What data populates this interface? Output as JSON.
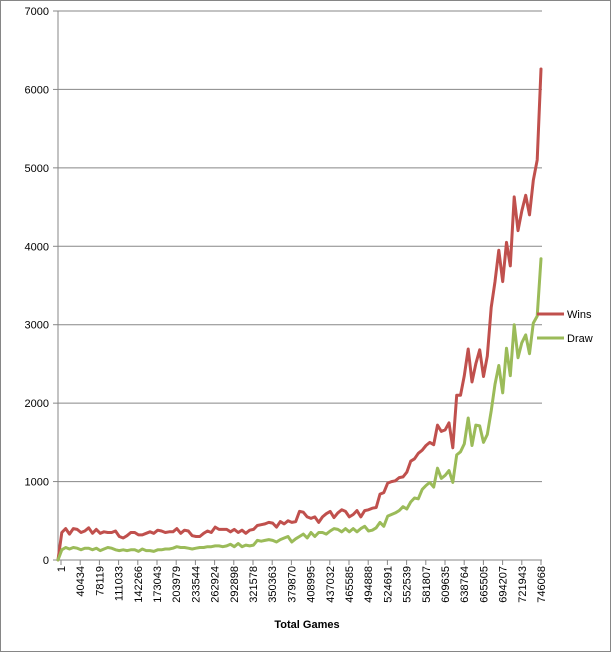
{
  "chart_data": {
    "type": "line",
    "title": "",
    "xlabel": "Total Games",
    "ylabel": "",
    "ylim": [
      0,
      7000
    ],
    "yticks": [
      "0",
      "1000",
      "2000",
      "3000",
      "4000",
      "5000",
      "6000",
      "7000"
    ],
    "grid": "horizontal",
    "legend_position": "right",
    "x_tick_labels": [
      "1",
      "40434",
      "78119",
      "111033",
      "142266",
      "173043",
      "203979",
      "233544",
      "262924",
      "292898",
      "321578",
      "350363",
      "379870",
      "408995",
      "437032",
      "465585",
      "494888",
      "524691",
      "552539",
      "581807",
      "609635",
      "638764",
      "665505",
      "694207",
      "721943",
      "746068"
    ],
    "colors": {
      "Wins": "#c0504d",
      "Draw": "#9bbb59",
      "grid": "#878787",
      "axis": "#878787"
    },
    "series": [
      {
        "name": "Wins",
        "values": [
          0,
          350,
          400,
          330,
          400,
          390,
          350,
          370,
          410,
          340,
          390,
          340,
          360,
          350,
          350,
          370,
          300,
          280,
          310,
          350,
          350,
          320,
          320,
          340,
          360,
          340,
          380,
          370,
          350,
          360,
          360,
          400,
          340,
          380,
          370,
          310,
          300,
          300,
          340,
          370,
          350,
          420,
          390,
          390,
          390,
          360,
          390,
          350,
          380,
          340,
          380,
          390,
          440,
          450,
          460,
          480,
          470,
          420,
          490,
          460,
          500,
          480,
          490,
          620,
          610,
          550,
          530,
          550,
          480,
          550,
          590,
          620,
          540,
          600,
          640,
          620,
          550,
          580,
          630,
          550,
          630,
          640,
          660,
          670,
          840,
          860,
          980,
          1000,
          1010,
          1050,
          1060,
          1120,
          1260,
          1290,
          1360,
          1400,
          1460,
          1500,
          1470,
          1720,
          1640,
          1660,
          1750,
          1430,
          2100,
          2100,
          2350,
          2690,
          2270,
          2500,
          2680,
          2340,
          2600,
          3220,
          3550,
          3950,
          3550,
          4050,
          3750,
          4630,
          4200,
          4450,
          4650,
          4400,
          4840,
          5100,
          6260
        ]
      },
      {
        "name": "Draw",
        "values": [
          0,
          130,
          160,
          140,
          160,
          150,
          130,
          150,
          150,
          130,
          150,
          120,
          140,
          160,
          150,
          130,
          120,
          130,
          120,
          130,
          130,
          110,
          140,
          120,
          120,
          110,
          130,
          130,
          140,
          140,
          150,
          170,
          160,
          160,
          150,
          140,
          150,
          160,
          160,
          170,
          170,
          180,
          180,
          170,
          180,
          200,
          170,
          210,
          170,
          190,
          180,
          190,
          250,
          240,
          250,
          260,
          250,
          230,
          260,
          280,
          300,
          230,
          270,
          300,
          330,
          280,
          350,
          300,
          350,
          350,
          330,
          370,
          400,
          390,
          360,
          400,
          360,
          400,
          360,
          400,
          430,
          370,
          380,
          410,
          480,
          430,
          560,
          580,
          600,
          630,
          680,
          650,
          740,
          790,
          780,
          900,
          950,
          990,
          930,
          1170,
          1040,
          1080,
          1140,
          990,
          1340,
          1380,
          1480,
          1810,
          1460,
          1720,
          1710,
          1500,
          1600,
          1900,
          2240,
          2480,
          2130,
          2700,
          2350,
          3000,
          2580,
          2770,
          2870,
          2630,
          3020,
          3110,
          3840
        ]
      }
    ]
  }
}
